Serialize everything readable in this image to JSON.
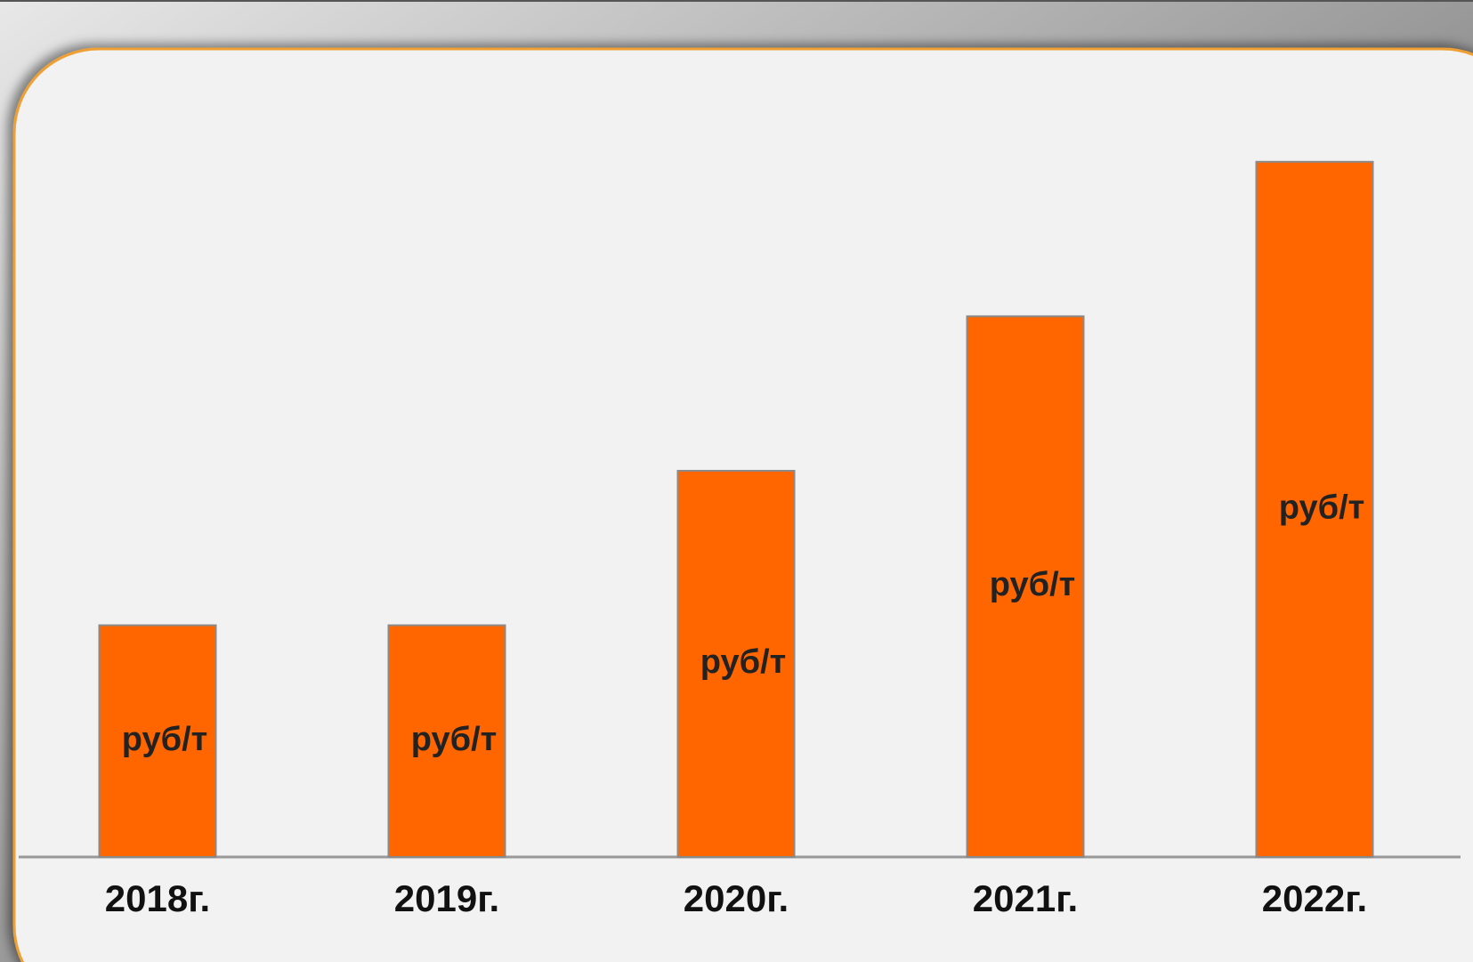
{
  "chart_data": {
    "type": "bar",
    "categories": [
      "2018г.",
      "2019г.",
      "2020г.",
      "2021г.",
      "2022г."
    ],
    "values": [
      300,
      300,
      500,
      700,
      900
    ],
    "value_labels": [
      "руб/т",
      "руб/т",
      "руб/т",
      "руб/т",
      "руб/т"
    ],
    "color": "#ff6600",
    "ylim": [
      0,
      1000
    ]
  }
}
